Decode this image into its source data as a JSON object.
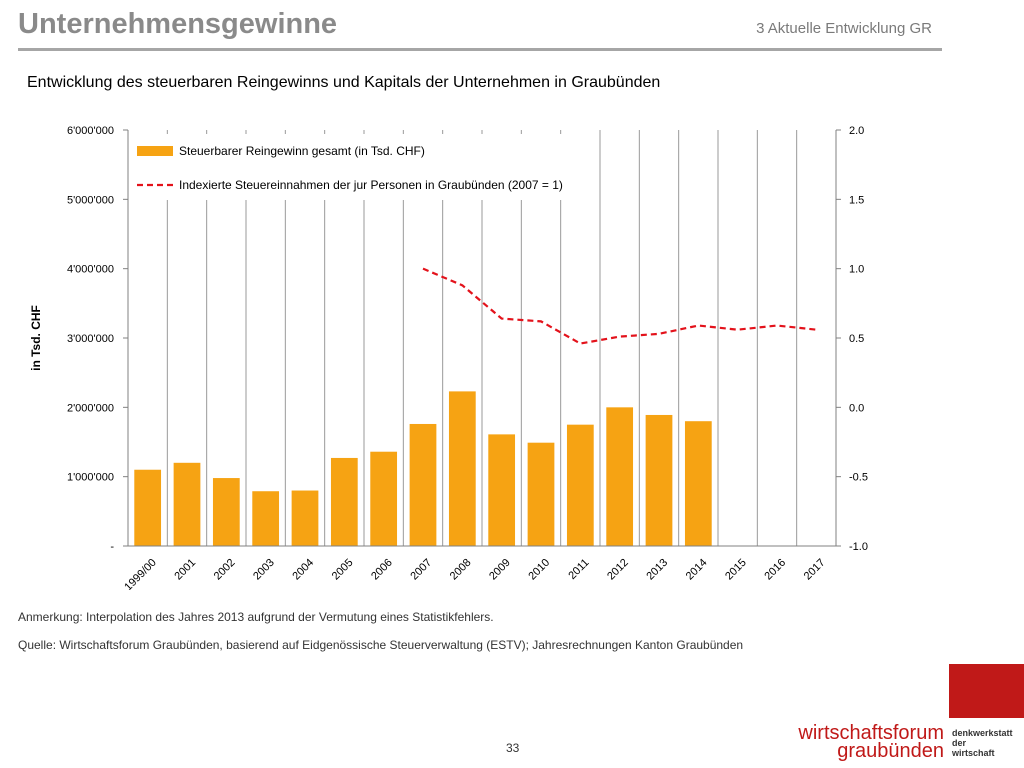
{
  "header": {
    "title": "Unternehmensgewinne",
    "section": "3 Aktuelle Entwicklung GR"
  },
  "chart_data": {
    "type": "bar",
    "title": "Entwicklung des steuerbaren Reingewinns und Kapitals der Unternehmen in Graubünden",
    "ylabel": "in Tsd. CHF",
    "categories": [
      "1999/00",
      "2001",
      "2002",
      "2003",
      "2004",
      "2005",
      "2006",
      "2007",
      "2008",
      "2009",
      "2010",
      "2011",
      "2012",
      "2013",
      "2014",
      "2015",
      "2016",
      "2017"
    ],
    "ylim": [
      0,
      6000000
    ],
    "y2lim": [
      -1.0,
      2.0
    ],
    "yticks": [
      "-",
      "1'000'000",
      "2'000'000",
      "3'000'000",
      "4'000'000",
      "5'000'000",
      "6'000'000"
    ],
    "y2ticks": [
      "-1.0",
      "-0.5",
      "0.0",
      "0.5",
      "1.0",
      "1.5",
      "2.0"
    ],
    "series": [
      {
        "name": "Steuerbarer Reingewinn gesamt (in Tsd. CHF)",
        "type": "bar",
        "axis": "left",
        "color": "#f6a313",
        "values": [
          1100000,
          1200000,
          980000,
          790000,
          800000,
          1270000,
          1360000,
          1760000,
          2230000,
          1610000,
          1490000,
          1750000,
          2000000,
          1890000,
          1800000,
          null,
          null,
          null
        ]
      },
      {
        "name": "Indexierte Steuereinnahmen der jur Personen in Graubünden (2007 = 1)",
        "type": "line",
        "axis": "right",
        "style": "dashed",
        "color": "#e3121b",
        "values": [
          null,
          null,
          null,
          null,
          null,
          null,
          null,
          1.0,
          0.88,
          0.64,
          0.62,
          0.46,
          0.51,
          0.53,
          0.59,
          0.56,
          0.59,
          0.56
        ]
      }
    ],
    "grid": "vertical",
    "legend": "top-left"
  },
  "footer": {
    "note": "Anmerkung:  Interpolation des Jahres 2013 aufgrund der Vermutung  eines Statistikfehlers.",
    "source": "Quelle: Wirtschaftsforum Graubünden, basierend auf Eidgenössische Steuerverwaltung (ESTV); Jahresrechnungen Kanton Graubünden",
    "page": "33",
    "logo_line1": "wirtschaftsforum",
    "logo_line2": "graubünden",
    "logo_side1": "denkwerkstatt",
    "logo_side2": "der",
    "logo_side3": "wirtschaft"
  }
}
